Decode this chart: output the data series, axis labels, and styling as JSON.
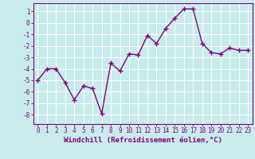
{
  "x": [
    0,
    1,
    2,
    3,
    4,
    5,
    6,
    7,
    8,
    9,
    10,
    11,
    12,
    13,
    14,
    15,
    16,
    17,
    18,
    19,
    20,
    21,
    22,
    23
  ],
  "y": [
    -5,
    -4,
    -4,
    -5.2,
    -6.7,
    -5.5,
    -5.7,
    -7.9,
    -3.5,
    -4.2,
    -2.7,
    -2.8,
    -1.1,
    -1.8,
    -0.5,
    0.4,
    1.2,
    1.2,
    -1.8,
    -2.6,
    -2.7,
    -2.2,
    -2.4,
    -2.4
  ],
  "line_color": "#800080",
  "marker": "+",
  "marker_size": 4,
  "bg_color": "#c8ecec",
  "grid_color": "#ffffff",
  "xlabel": "Windchill (Refroidissement éolien,°C)",
  "xlim": [
    -0.5,
    23.5
  ],
  "ylim": [
    -8.8,
    1.7
  ],
  "yticks": [
    1,
    0,
    -1,
    -2,
    -3,
    -4,
    -5,
    -6,
    -7,
    -8
  ],
  "xticks": [
    0,
    1,
    2,
    3,
    4,
    5,
    6,
    7,
    8,
    9,
    10,
    11,
    12,
    13,
    14,
    15,
    16,
    17,
    18,
    19,
    20,
    21,
    22,
    23
  ],
  "tick_label_color": "#800080",
  "tick_label_fontsize": 5.5,
  "xlabel_fontsize": 6.5,
  "xlabel_color": "#800080",
  "line_width": 1.0,
  "spine_color": "#800080"
}
